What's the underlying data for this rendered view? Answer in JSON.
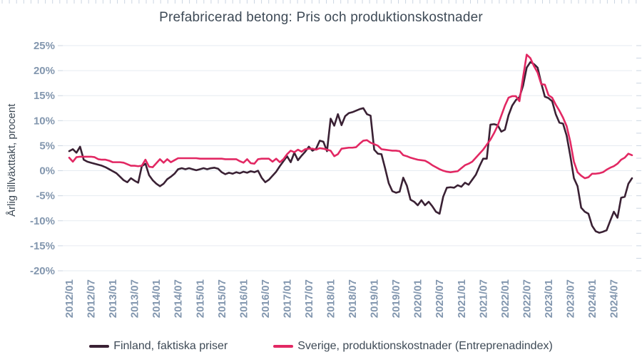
{
  "title": "Prefabricerad betong: Pris och produktionskostnader",
  "colors": {
    "finland_line": "#3a2134",
    "sverige_line": "#e22863",
    "title_text": "#3e4a56",
    "tick_text": "#8296ae",
    "gridline": "#e6ebf1",
    "minor_tick": "#ccd6e2",
    "background": "#ffffff"
  },
  "chart_data": {
    "type": "line",
    "title": "Prefabricerad betong: Pris och produktionskostnader",
    "xlabel": "",
    "ylabel": "Årlig tillväxttakt, procent",
    "ylim": [
      -20,
      25
    ],
    "y_tick_step": 5,
    "grid": true,
    "legend_position": "bottom",
    "x_start": "2012/01",
    "x_end": "2024/12",
    "x_frequency": "monthly",
    "x_tick_labels": [
      "2012/01",
      "2012/07",
      "2013/01",
      "2013/07",
      "2014/01",
      "2014/07",
      "2015/01",
      "2015/07",
      "2016/01",
      "2016/07",
      "2017/01",
      "2017/07",
      "2018/01",
      "2018/07",
      "2019/01",
      "2019/07",
      "2020/01",
      "2020/07",
      "2021/01",
      "2021/07",
      "2022/01",
      "2022/07",
      "2023/01",
      "2023/07",
      "2024/01",
      "2024/07"
    ],
    "y_tick_labels": [
      "25%",
      "20%",
      "15%",
      "10%",
      "5%",
      "0%",
      "-5%",
      "-10%",
      "-15%",
      "-20%"
    ],
    "series": [
      {
        "name": "Finland, faktiska priser",
        "color": "#3a2134",
        "values": [
          3.9,
          4.3,
          3.6,
          4.8,
          2.2,
          1.8,
          1.6,
          1.4,
          1.2,
          1.0,
          0.7,
          0.3,
          -0.1,
          -0.5,
          -1.2,
          -1.9,
          -2.3,
          -1.5,
          -2.0,
          -2.4,
          0.9,
          1.4,
          -0.9,
          -1.9,
          -2.6,
          -3.1,
          -2.6,
          -1.7,
          -1.2,
          -0.6,
          0.3,
          0.5,
          0.3,
          0.5,
          0.3,
          0.1,
          0.3,
          0.5,
          0.3,
          0.5,
          0.6,
          0.4,
          -0.3,
          -0.7,
          -0.4,
          -0.6,
          -0.3,
          -0.5,
          -0.2,
          -0.4,
          -0.1,
          -0.3,
          0.0,
          -1.4,
          -2.3,
          -1.8,
          -1.0,
          -0.2,
          0.9,
          1.9,
          2.9,
          1.7,
          3.6,
          2.1,
          3.0,
          3.8,
          4.8,
          4.0,
          4.4,
          6.0,
          5.8,
          3.9,
          10.4,
          9.0,
          11.3,
          9.1,
          10.9,
          11.5,
          11.7,
          12.0,
          12.3,
          12.5,
          11.3,
          11.0,
          4.2,
          3.4,
          3.3,
          0.5,
          -2.5,
          -4.1,
          -4.4,
          -4.2,
          -1.4,
          -3.0,
          -5.8,
          -6.2,
          -6.9,
          -5.9,
          -6.9,
          -6.2,
          -7.1,
          -8.2,
          -8.6,
          -5.2,
          -3.4,
          -3.3,
          -3.4,
          -2.9,
          -3.2,
          -2.4,
          -2.8,
          -1.8,
          -0.8,
          0.9,
          2.4,
          2.4,
          9.2,
          9.3,
          9.1,
          7.8,
          8.2,
          11.1,
          13.0,
          14.1,
          14.7,
          17.0,
          20.6,
          21.7,
          21.3,
          20.6,
          17.5,
          14.8,
          14.5,
          13.9,
          11.3,
          9.6,
          9.4,
          7.0,
          3.0,
          -1.5,
          -3.1,
          -7.4,
          -8.2,
          -8.6,
          -11.0,
          -12.1,
          -12.4,
          -12.2,
          -11.9,
          -10.0,
          -8.2,
          -9.4,
          -5.4,
          -5.2,
          -2.6,
          -1.5
        ]
      },
      {
        "name": "Sverige, produktionskostnader (Entreprenadindex)",
        "color": "#e22863",
        "values": [
          2.6,
          1.8,
          2.7,
          2.8,
          2.8,
          2.8,
          2.8,
          2.7,
          2.3,
          2.2,
          2.2,
          2.0,
          1.7,
          1.7,
          1.7,
          1.6,
          1.3,
          1.0,
          1.0,
          0.9,
          1.0,
          2.2,
          0.8,
          0.7,
          1.5,
          2.3,
          1.6,
          2.3,
          1.7,
          2.1,
          2.5,
          2.5,
          2.5,
          2.5,
          2.5,
          2.5,
          2.4,
          2.4,
          2.4,
          2.4,
          2.4,
          2.4,
          2.4,
          2.3,
          2.3,
          2.3,
          2.3,
          1.9,
          1.6,
          2.3,
          1.5,
          1.4,
          2.3,
          2.4,
          2.4,
          2.4,
          1.8,
          2.4,
          1.7,
          2.3,
          3.3,
          4.0,
          3.7,
          4.2,
          3.8,
          4.3,
          4.4,
          4.4,
          4.2,
          4.5,
          4.4,
          4.2,
          4.0,
          2.9,
          3.3,
          4.4,
          4.5,
          4.6,
          4.6,
          4.7,
          5.4,
          6.0,
          6.1,
          5.6,
          5.3,
          5.0,
          4.3,
          4.2,
          4.1,
          4.0,
          4.0,
          3.9,
          3.1,
          2.9,
          2.6,
          2.4,
          2.2,
          2.1,
          2.0,
          1.6,
          1.1,
          0.7,
          0.3,
          0.0,
          -0.2,
          -0.3,
          -0.2,
          -0.1,
          0.5,
          1.1,
          1.4,
          1.8,
          2.6,
          3.4,
          4.2,
          5.2,
          6.2,
          7.5,
          9.0,
          11.0,
          13.0,
          14.6,
          14.9,
          14.9,
          13.9,
          18.7,
          23.2,
          22.5,
          20.9,
          19.6,
          17.3,
          17.2,
          15.1,
          14.6,
          13.2,
          12.0,
          10.6,
          8.9,
          5.8,
          1.8,
          -0.3,
          -1.0,
          -1.5,
          -1.3,
          -0.6,
          -0.6,
          -0.5,
          -0.3,
          0.2,
          0.6,
          0.9,
          1.4,
          2.2,
          2.6,
          3.4,
          3.1
        ]
      }
    ]
  },
  "legend": {
    "finland_label": "Finland, faktiska priser",
    "sverige_label": "Sverige, produktionskostnader (Entreprenadindex)"
  }
}
